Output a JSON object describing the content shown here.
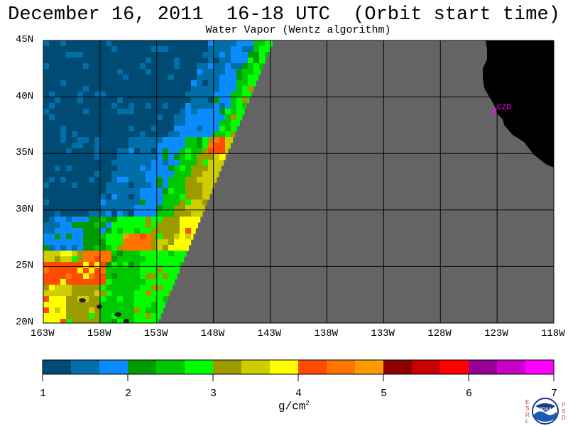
{
  "title": "December 16, 2011  16-18 UTC  (Orbit start time)",
  "subtitle": "Water Vapor (Wentz algorithm)",
  "map": {
    "lat_labels": [
      "45N",
      "40N",
      "35N",
      "30N",
      "25N",
      "20N"
    ],
    "lon_labels": [
      "163W",
      "158W",
      "153W",
      "148W",
      "143W",
      "138W",
      "133W",
      "128W",
      "123W",
      "118W"
    ],
    "lat_range": [
      20,
      45
    ],
    "lon_range": [
      -163,
      -118
    ],
    "station_label": "CZD",
    "colors": {
      "land": "#000000",
      "no_data": "#646464",
      "grid": "#000000",
      "station": "#ff00ff"
    }
  },
  "colorbar": {
    "tick_labels": [
      "1",
      "2",
      "3",
      "4",
      "5",
      "6",
      "7"
    ],
    "units_base": "g/cm",
    "units_exp": "2",
    "colors": [
      "#004b73",
      "#006ea8",
      "#0a8cff",
      "#009b00",
      "#00c800",
      "#00ff00",
      "#9b9b00",
      "#cdcd00",
      "#ffff00",
      "#ff4b00",
      "#ff7300",
      "#ff9b00",
      "#8c0000",
      "#c80000",
      "#ff0000",
      "#960096",
      "#c800c8",
      "#ff00ff"
    ]
  },
  "logo": {
    "left_letters": "ESRL",
    "right_letters": "PSD",
    "center_text": "NOAA"
  }
}
